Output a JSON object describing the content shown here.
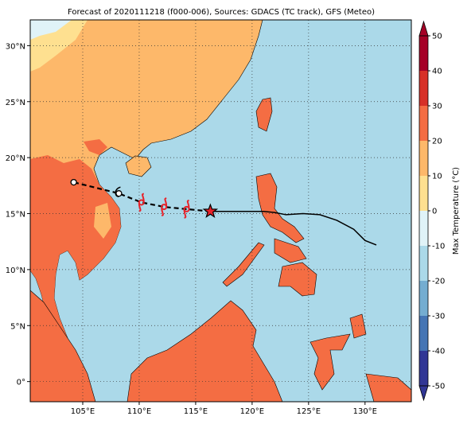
{
  "map": {
    "title": "Forecast of 2020111218 (f000-006), Sources: GDACS (TC track), GFS (Meteo)",
    "xlim": [
      100.35,
      134.1
    ],
    "ylim": [
      -1.8,
      32.3
    ],
    "xticks": [
      {
        "value": 105,
        "label": "105°E"
      },
      {
        "value": 110,
        "label": "110°E"
      },
      {
        "value": 115,
        "label": "115°E"
      },
      {
        "value": 120,
        "label": "120°E"
      },
      {
        "value": 125,
        "label": "125°E"
      },
      {
        "value": 130,
        "label": "130°E"
      }
    ],
    "yticks": [
      {
        "value": 0,
        "label": "0°"
      },
      {
        "value": 5,
        "label": "5°N"
      },
      {
        "value": 10,
        "label": "10°N"
      },
      {
        "value": 15,
        "label": "15°N"
      },
      {
        "value": 20,
        "label": "20°N"
      },
      {
        "value": 25,
        "label": "25°N"
      },
      {
        "value": 30,
        "label": "30°N"
      }
    ],
    "grid": true,
    "forecast_track": {
      "lon": [
        116.3,
        114.2,
        112.2,
        110.2,
        108.2,
        104.2
      ],
      "lat": [
        15.2,
        15.4,
        15.6,
        16.0,
        16.8,
        17.8
      ]
    },
    "past_track": {
      "lon": [
        116.3,
        119,
        121,
        122,
        123,
        124.5,
        126,
        127.5,
        129,
        130,
        131
      ],
      "lat": [
        15.2,
        15.2,
        15.2,
        15.1,
        14.9,
        15.0,
        14.9,
        14.4,
        13.6,
        12.6,
        12.2
      ]
    },
    "colorbar": {
      "label": "Max Temperature (°C)",
      "ticks": [
        -50,
        -40,
        -30,
        -20,
        -10,
        0,
        10,
        20,
        30,
        40,
        50
      ],
      "colors": [
        "#313695",
        "#4575b4",
        "#74add1",
        "#abd9e9",
        "#e0f3f8",
        "#fee090",
        "#fdb86a",
        "#f46d43",
        "#d73027",
        "#a50026"
      ]
    }
  }
}
